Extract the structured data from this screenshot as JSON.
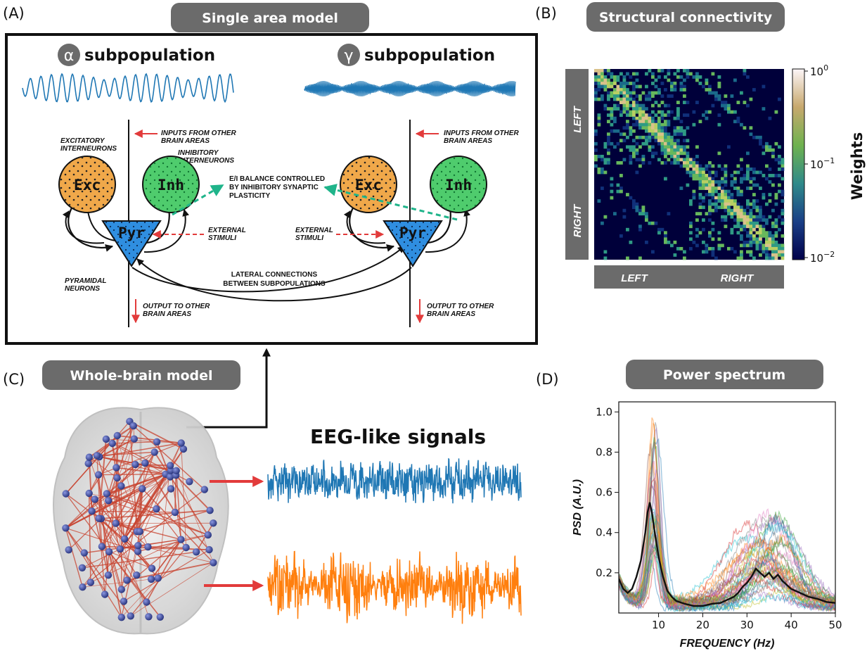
{
  "panels": {
    "a": {
      "letter": "(A)",
      "title": "Single area model"
    },
    "b": {
      "letter": "(B)",
      "title": "Structural connectivity"
    },
    "c": {
      "letter": "(C)",
      "title": "Whole-brain model"
    },
    "d": {
      "letter": "(D)",
      "title": "Power spectrum"
    }
  },
  "single_area": {
    "alpha_symbol": "α",
    "gamma_symbol": "γ",
    "subpopulation_label": "subpopulation",
    "exc_label": "Exc",
    "inh_label": "Inh",
    "pyr_label": "Pyr",
    "annotations": {
      "excitatory_1": "EXCITATORY",
      "excitatory_2": "INTERNEURONS",
      "inhibitory_1": "INHIBITORY",
      "inhibitory_2": "INTERNEURONS",
      "inputs_1": "INPUTS FROM OTHER",
      "inputs_2": "BRAIN AREAS",
      "ei_1": "E/I BALANCE CONTROLLED",
      "ei_2": "BY INHIBITORY SYNAPTIC",
      "ei_3": "PLASTICITY",
      "external_1": "EXTERNAL",
      "external_2": "STIMULI",
      "pyramidal_1": "PYRAMIDAL",
      "pyramidal_2": "NEURONS",
      "lateral_1": "LATERAL CONNECTIONS",
      "lateral_2": "BETWEEN SUBPOPULATIONS",
      "output_1": "OUTPUT TO OTHER",
      "output_2": "BRAIN AREAS"
    }
  },
  "connectivity": {
    "row_labels": [
      "LEFT",
      "RIGHT"
    ],
    "col_labels": [
      "LEFT",
      "RIGHT"
    ],
    "colorbar_label": "Weights",
    "colorbar_ticks": [
      {
        "base": "10",
        "exp": "0"
      },
      {
        "base": "10",
        "exp": "−1"
      },
      {
        "base": "10",
        "exp": "−2"
      }
    ],
    "colors": {
      "low": "#00003a",
      "mid": "#2f8f7f",
      "high": "#b7d36a",
      "top": "#fdf6f8"
    }
  },
  "whole_brain": {
    "eeg_title": "EEG-like signals",
    "signal_colors": {
      "blue": "#1f77b4",
      "orange": "#ff7f0e"
    },
    "edge_color": "#c8432f",
    "node_color": "#2b3a8c"
  },
  "chart_data": {
    "type": "line",
    "title": "Power spectrum",
    "xlabel": "FREQUENCY (Hz)",
    "ylabel": "PSD (A.U.)",
    "xlim": [
      1,
      50
    ],
    "ylim": [
      0,
      1.05
    ],
    "xticks": [
      10,
      20,
      30,
      40,
      50
    ],
    "yticks": [
      0.2,
      0.4,
      0.6,
      0.8,
      1.0
    ],
    "ytick_labels": [
      "0.2",
      "0.4",
      "0.6",
      "0.8",
      "1.0"
    ],
    "grid": false,
    "legend": "none",
    "mean_series": {
      "x": [
        1,
        2,
        3,
        4,
        5,
        6,
        7,
        7.5,
        8,
        8.5,
        9,
        9.5,
        10,
        11,
        12,
        13,
        14,
        16,
        18,
        20,
        22,
        24,
        26,
        27,
        28,
        29,
        30,
        31,
        32,
        33,
        34,
        35,
        36,
        37,
        38,
        39,
        40,
        42,
        44,
        46,
        48,
        50
      ],
      "y": [
        0.17,
        0.12,
        0.1,
        0.12,
        0.18,
        0.26,
        0.4,
        0.5,
        0.55,
        0.5,
        0.42,
        0.35,
        0.28,
        0.18,
        0.11,
        0.08,
        0.06,
        0.045,
        0.035,
        0.035,
        0.045,
        0.05,
        0.07,
        0.08,
        0.1,
        0.13,
        0.15,
        0.18,
        0.22,
        0.2,
        0.18,
        0.2,
        0.17,
        0.19,
        0.16,
        0.14,
        0.12,
        0.1,
        0.08,
        0.07,
        0.055,
        0.05
      ]
    },
    "individual_series_count": 40,
    "series_colors": [
      "#1f77b4",
      "#ff7f0e",
      "#2ca02c",
      "#d62728",
      "#9467bd",
      "#8c564b",
      "#e377c2",
      "#7f7f7f",
      "#bcbd22",
      "#17becf"
    ]
  }
}
